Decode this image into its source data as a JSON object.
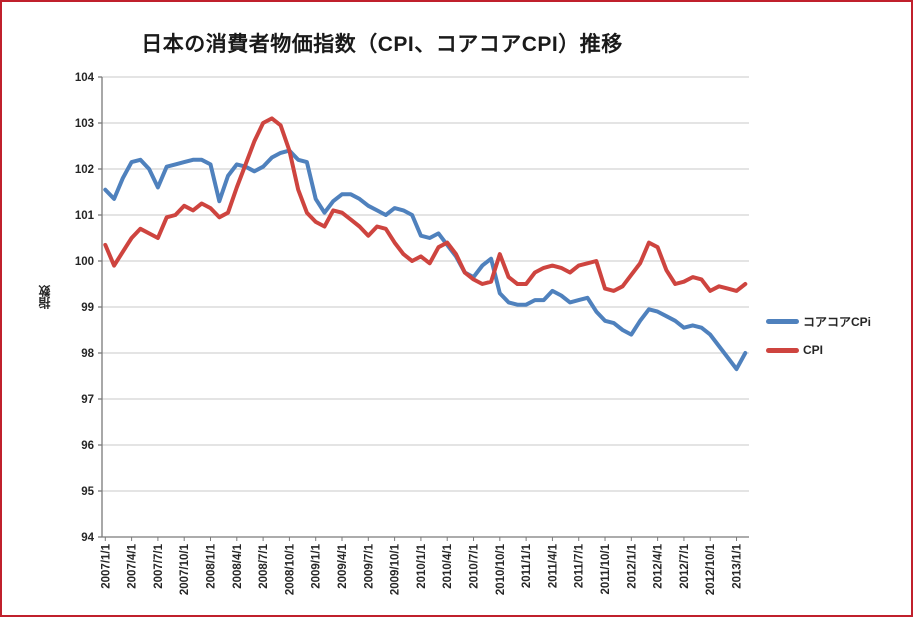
{
  "title": "日本の消費者物価指数（CPI、コアコアCPI）推移",
  "y_axis": {
    "title": "指数",
    "min": 94,
    "max": 104,
    "ticks": [
      94,
      95,
      96,
      97,
      98,
      99,
      100,
      101,
      102,
      103,
      104
    ]
  },
  "x_axis": {
    "tick_every_months": 3,
    "tick_labels": [
      "2007/1/1",
      "2007/4/1",
      "2007/7/1",
      "2007/10/1",
      "2008/1/1",
      "2008/4/1",
      "2008/7/1",
      "2008/10/1",
      "2009/1/1",
      "2009/4/1",
      "2009/7/1",
      "2009/10/1",
      "2010/1/1",
      "2010/4/1",
      "2010/7/1",
      "2010/10/1",
      "2011/1/1",
      "2011/4/1",
      "2011/7/1",
      "2011/10/1",
      "2012/1/1",
      "2012/4/1",
      "2012/7/1",
      "2012/10/1",
      "2013/1/1"
    ]
  },
  "colors": {
    "frame_border": "#C0202C",
    "gridline": "#D4D4D4",
    "axis_line": "#7A7A7A",
    "tick_text": "#262626",
    "core_core_cpi_blue": "#4F81BD",
    "cpi_red": "#CE443F"
  },
  "legend": {
    "position": "right"
  },
  "chart_data": {
    "type": "line",
    "title": "日本の消費者物価指数（CPI、コアコアCPI）推移",
    "xlabel": "",
    "ylabel": "指数",
    "ylim": [
      94,
      104
    ],
    "grid": true,
    "x_start_month": "2007/1",
    "x_end_month": "2013/2",
    "x_tick_every": 3,
    "x_tick_labels": [
      "2007/1/1",
      "2007/4/1",
      "2007/7/1",
      "2007/10/1",
      "2008/1/1",
      "2008/4/1",
      "2008/7/1",
      "2008/10/1",
      "2009/1/1",
      "2009/4/1",
      "2009/7/1",
      "2009/10/1",
      "2010/1/1",
      "2010/4/1",
      "2010/7/1",
      "2010/10/1",
      "2011/1/1",
      "2011/4/1",
      "2011/7/1",
      "2011/10/1",
      "2012/1/1",
      "2012/4/1",
      "2012/7/1",
      "2012/10/1",
      "2013/1/1"
    ],
    "series": [
      {
        "name": "コアコアCPi",
        "color": "#4F81BD",
        "values": [
          101.55,
          101.35,
          101.8,
          102.15,
          102.2,
          102.0,
          101.6,
          102.05,
          102.1,
          102.15,
          102.2,
          102.2,
          102.1,
          101.3,
          101.85,
          102.1,
          102.05,
          101.95,
          102.05,
          102.25,
          102.35,
          102.4,
          102.2,
          102.15,
          101.35,
          101.05,
          101.3,
          101.45,
          101.45,
          101.35,
          101.2,
          101.1,
          101.0,
          101.15,
          101.1,
          101.0,
          100.55,
          100.5,
          100.6,
          100.35,
          100.1,
          99.75,
          99.65,
          99.9,
          100.05,
          99.3,
          99.1,
          99.05,
          99.05,
          99.15,
          99.15,
          99.35,
          99.25,
          99.1,
          99.15,
          99.2,
          98.9,
          98.7,
          98.65,
          98.5,
          98.4,
          98.7,
          98.95,
          98.9,
          98.8,
          98.7,
          98.55,
          98.6,
          98.55,
          98.4,
          98.15,
          97.9,
          97.65,
          98.0
        ]
      },
      {
        "name": "CPI",
        "color": "#CE443F",
        "values": [
          100.35,
          99.9,
          100.2,
          100.5,
          100.7,
          100.6,
          100.5,
          100.95,
          101.0,
          101.2,
          101.1,
          101.25,
          101.15,
          100.95,
          101.05,
          101.6,
          102.1,
          102.6,
          103.0,
          103.1,
          102.95,
          102.4,
          101.55,
          101.05,
          100.85,
          100.75,
          101.1,
          101.05,
          100.9,
          100.75,
          100.55,
          100.75,
          100.7,
          100.4,
          100.15,
          100.0,
          100.1,
          99.95,
          100.3,
          100.4,
          100.15,
          99.75,
          99.6,
          99.5,
          99.55,
          100.15,
          99.65,
          99.5,
          99.5,
          99.75,
          99.85,
          99.9,
          99.85,
          99.75,
          99.9,
          99.95,
          100.0,
          99.4,
          99.35,
          99.45,
          99.7,
          99.95,
          100.4,
          100.3,
          99.8,
          99.5,
          99.55,
          99.65,
          99.6,
          99.35,
          99.45,
          99.4,
          99.35,
          99.5
        ]
      }
    ]
  }
}
